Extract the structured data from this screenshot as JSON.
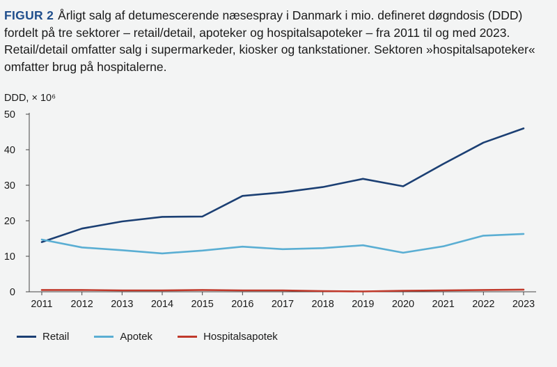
{
  "caption": {
    "label": "FIGUR 2",
    "text": "Årligt salg af detumescerende næsespray i Danmark i mio. defineret døgndosis (DDD) fordelt på tre sektorer – retail/detail, apoteker og hospitalsapoteker – fra 2011 til og med 2023. Retail/detail omfatter salg i supermarkeder, kiosker og tankstationer. Sektoren »hospitalsapoteker« omfatter brug på hospitalerne."
  },
  "chart_data": {
    "type": "line",
    "ylabel": "DDD, × 10⁶",
    "xlabel": "",
    "ylim": [
      0,
      50
    ],
    "yticks": [
      0,
      10,
      20,
      30,
      40,
      50
    ],
    "grid": false,
    "legend_position": "bottom-left",
    "x": [
      "2011",
      "2012",
      "2013",
      "2014",
      "2015",
      "2016",
      "2017",
      "2018",
      "2019",
      "2020",
      "2021",
      "2022",
      "2023"
    ],
    "series": [
      {
        "name": "Retail",
        "color": "#1b3f73",
        "values": [
          14.0,
          17.8,
          19.8,
          21.1,
          21.2,
          27.0,
          28.0,
          29.5,
          31.8,
          29.7,
          36.0,
          42.0,
          46.0
        ]
      },
      {
        "name": "Apotek",
        "color": "#5aaed3",
        "values": [
          14.7,
          12.5,
          11.7,
          10.8,
          11.6,
          12.7,
          12.0,
          12.3,
          13.1,
          11.0,
          12.8,
          15.8,
          16.3
        ]
      },
      {
        "name": "Hospitalsapotek",
        "color": "#c0392b",
        "values": [
          0.5,
          0.5,
          0.4,
          0.4,
          0.5,
          0.4,
          0.4,
          0.2,
          0.1,
          0.3,
          0.4,
          0.5,
          0.6
        ]
      }
    ]
  }
}
